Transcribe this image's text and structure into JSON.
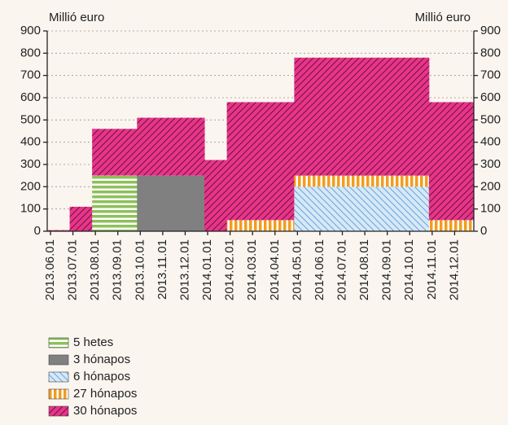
{
  "chart_data": {
    "type": "stacked-step",
    "y_label": "Millió euro",
    "y2_label": "Millió euro",
    "categories": [
      "2013.06.01",
      "2013.07.01",
      "2013.08.01",
      "2013.09.01",
      "2013.10.01",
      "2013.11.01",
      "2013.12.01",
      "2014.01.01",
      "2014.02.01",
      "2014.03.01",
      "2014.04.01",
      "2014.05.01",
      "2014.06.01",
      "2014.07.01",
      "2014.08.01",
      "2014.09.01",
      "2014.10.01",
      "2014.11.01",
      "2014.12.01"
    ],
    "series": [
      {
        "name": "5 hetes",
        "color": "#8dc05a",
        "hatch": "horizontal",
        "values": [
          0,
          0,
          250,
          250,
          0,
          0,
          0,
          0,
          0,
          0,
          0,
          0,
          0,
          0,
          0,
          0,
          0,
          0,
          0
        ]
      },
      {
        "name": "3 hónapos",
        "color": "#808080",
        "hatch": "solid",
        "values": [
          0,
          0,
          0,
          0,
          250,
          250,
          250,
          0,
          0,
          0,
          0,
          0,
          0,
          0,
          0,
          0,
          0,
          0,
          0
        ]
      },
      {
        "name": "6 hónapos",
        "color": "#5b9bd5",
        "hatch": "diagonal-back",
        "values": [
          0,
          0,
          0,
          0,
          0,
          0,
          0,
          0,
          0,
          0,
          0,
          200,
          200,
          200,
          200,
          200,
          200,
          0,
          0
        ]
      },
      {
        "name": "27 hónapos",
        "color": "#f39c1f",
        "hatch": "vertical",
        "values": [
          0,
          0,
          0,
          0,
          0,
          0,
          0,
          0,
          50,
          50,
          50,
          50,
          50,
          50,
          50,
          50,
          50,
          50,
          50
        ]
      },
      {
        "name": "30 hónapos",
        "color": "#e8348a",
        "hatch": "diagonal",
        "values": [
          5,
          110,
          210,
          210,
          260,
          260,
          260,
          320,
          530,
          530,
          530,
          530,
          530,
          530,
          530,
          530,
          530,
          530,
          530
        ]
      }
    ],
    "ylim": [
      0,
      900
    ],
    "yticks": [
      0,
      100,
      200,
      300,
      400,
      500,
      600,
      700,
      800,
      900
    ],
    "y2lim": [
      0,
      900
    ],
    "y2ticks": [
      0,
      100,
      200,
      300,
      400,
      500,
      600,
      700,
      800,
      900
    ],
    "grid": true,
    "legend": "bottom-left"
  }
}
